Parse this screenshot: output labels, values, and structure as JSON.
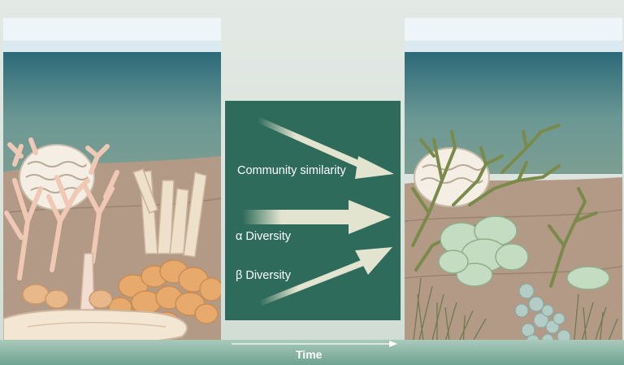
{
  "labels": {
    "community_similarity": "Community similarity",
    "alpha_diversity": "α Diversity",
    "beta_diversity": "β Diversity",
    "time": "Time"
  },
  "colors": {
    "center_box": "#2f6b5b",
    "arrow_fill": "#e3e4cf",
    "water_top": "#2f6d7e",
    "seabed": "#b39a86",
    "coral_white": "#f5eee4",
    "coral_orange": "#e8aa6c",
    "coral_pink": "#f0c9b6",
    "algae_green": "#7a8a4a",
    "algae_pale": "#c4dcc2",
    "band": "#7fae9d"
  }
}
